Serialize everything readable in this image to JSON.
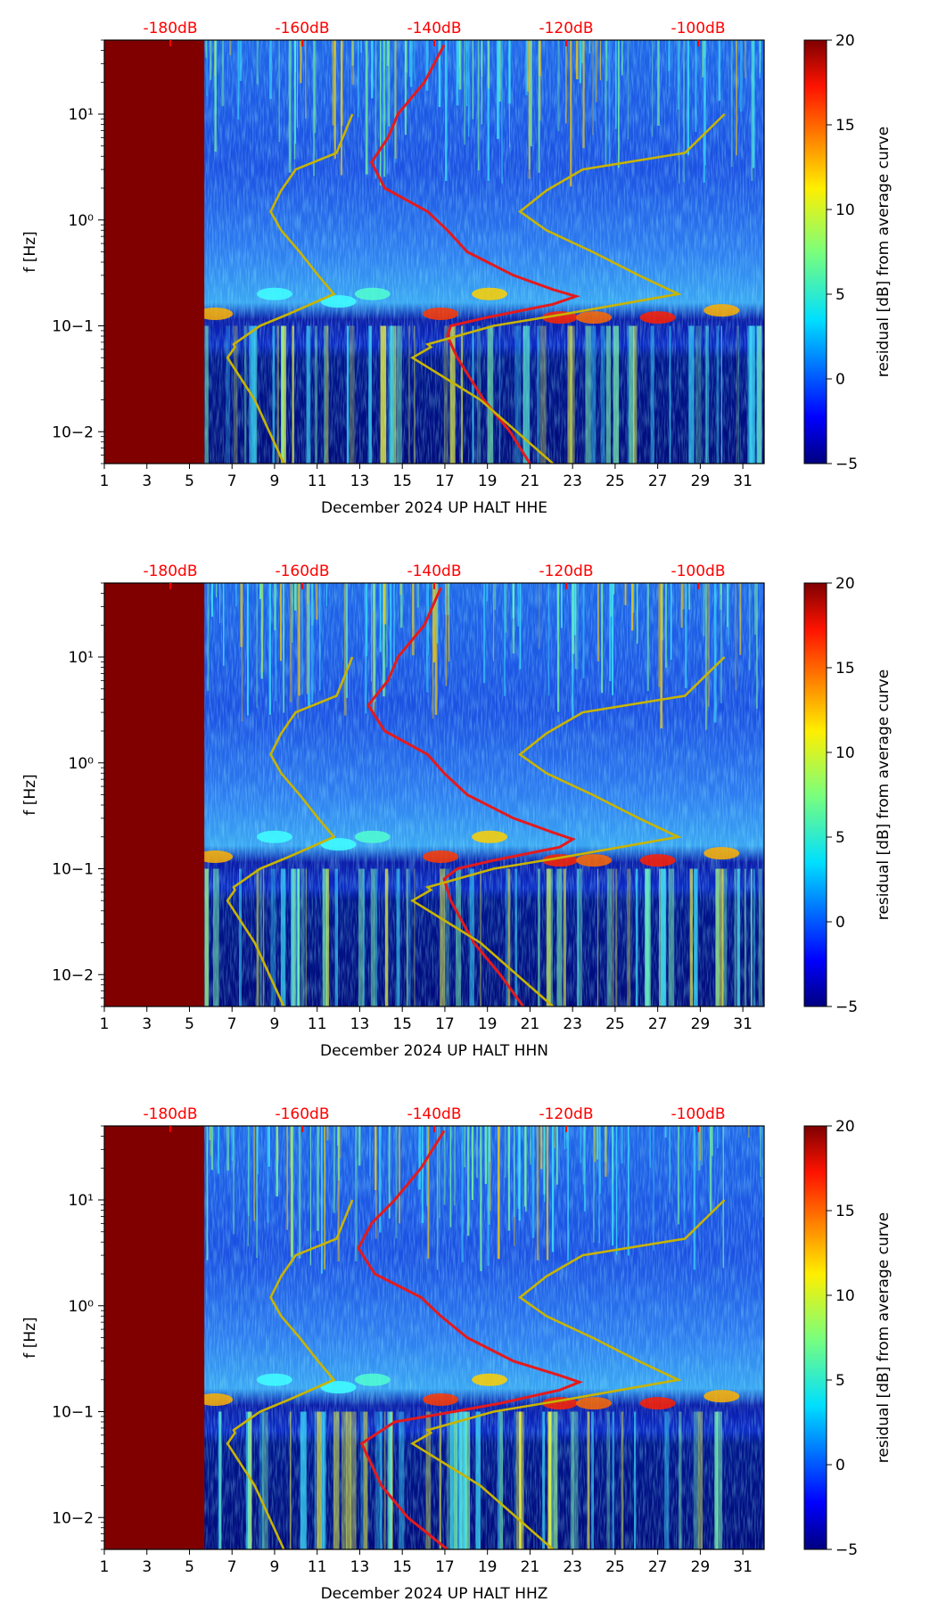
{
  "colors": {
    "top_axis_labels": "#ff0000",
    "red_curve": "#e41a1c",
    "gold_curve": "#c8b400",
    "masked_region": "#800000",
    "spectrogram_background": "#1a3cd9"
  },
  "chart_data": [
    {
      "type": "heatmap",
      "channel": "HHE",
      "xlabel": "December 2024 UP HALT  HHE",
      "ylabel": "f [Hz]",
      "x_ticks": [
        "1",
        "3",
        "5",
        "7",
        "9",
        "11",
        "13",
        "15",
        "17",
        "19",
        "21",
        "23",
        "25",
        "27",
        "29",
        "31"
      ],
      "x_range": [
        1,
        32
      ],
      "y_range_hz": [
        0.005,
        50
      ],
      "y_scale": "log",
      "y_ticks": [
        "10−2",
        "10−1",
        "10⁰",
        "10¹"
      ],
      "top_axis_labels": [
        "-180dB",
        "-160dB",
        "-140dB",
        "-120dB",
        "-100dB"
      ],
      "top_axis_db": [
        -180,
        -160,
        -140,
        -120,
        -100
      ],
      "colorbar_label": "residual [dB] from average curve",
      "colorbar_ticks": [
        "20",
        "15",
        "10",
        "5",
        "0",
        "−5"
      ],
      "colorbar_range": [
        -5,
        20
      ],
      "masked_days": [
        1,
        5.7
      ],
      "red_curve_db_vs_hz": [
        [
          0.005,
          -125.5
        ],
        [
          0.01,
          -128.5
        ],
        [
          0.02,
          -132.5
        ],
        [
          0.05,
          -136.5
        ],
        [
          0.08,
          -138
        ],
        [
          0.1,
          -137.5
        ],
        [
          0.12,
          -132
        ],
        [
          0.16,
          -122
        ],
        [
          0.19,
          -118.5
        ],
        [
          0.22,
          -122
        ],
        [
          0.3,
          -128
        ],
        [
          0.5,
          -135
        ],
        [
          0.8,
          -138
        ],
        [
          1.2,
          -141
        ],
        [
          2,
          -147.5
        ],
        [
          3.5,
          -149.5
        ],
        [
          6,
          -147
        ],
        [
          10,
          -145.5
        ],
        [
          20,
          -141.5
        ],
        [
          45,
          -138.5
        ]
      ],
      "gold_curve_db_vs_hz": [
        [
          0.005,
          -122
        ],
        [
          0.02,
          -133
        ],
        [
          0.05,
          -143.3
        ],
        [
          0.063,
          -140.5
        ],
        [
          0.067,
          -141
        ],
        [
          0.1,
          -131
        ],
        [
          0.13,
          -120
        ],
        [
          0.2,
          -103
        ],
        [
          0.3,
          -109
        ],
        [
          0.5,
          -116
        ],
        [
          0.8,
          -123
        ],
        [
          1.2,
          -127
        ],
        [
          1.9,
          -123
        ],
        [
          3,
          -117.5
        ],
        [
          4.3,
          -102
        ],
        [
          10,
          -96
        ]
      ]
    },
    {
      "type": "heatmap",
      "channel": "HHN",
      "xlabel": "December 2024 UP HALT  HHN",
      "ylabel": "f [Hz]",
      "x_ticks": [
        "1",
        "3",
        "5",
        "7",
        "9",
        "11",
        "13",
        "15",
        "17",
        "19",
        "21",
        "23",
        "25",
        "27",
        "29",
        "31"
      ],
      "x_range": [
        1,
        32
      ],
      "y_range_hz": [
        0.005,
        50
      ],
      "y_scale": "log",
      "y_ticks": [
        "10−2",
        "10−1",
        "10⁰",
        "10¹"
      ],
      "top_axis_labels": [
        "-180dB",
        "-160dB",
        "-140dB",
        "-120dB",
        "-100dB"
      ],
      "top_axis_db": [
        -180,
        -160,
        -140,
        -120,
        -100
      ],
      "colorbar_label": "residual [dB] from average curve",
      "colorbar_ticks": [
        "20",
        "15",
        "10",
        "5",
        "0",
        "−5"
      ],
      "colorbar_range": [
        -5,
        20
      ],
      "masked_days": [
        1,
        5.7
      ],
      "red_curve_db_vs_hz": [
        [
          0.005,
          -126.5
        ],
        [
          0.01,
          -130
        ],
        [
          0.02,
          -134
        ],
        [
          0.05,
          -137.5
        ],
        [
          0.08,
          -138.5
        ],
        [
          0.1,
          -136.5
        ],
        [
          0.12,
          -131
        ],
        [
          0.16,
          -121
        ],
        [
          0.19,
          -119
        ],
        [
          0.22,
          -122
        ],
        [
          0.3,
          -128
        ],
        [
          0.5,
          -135
        ],
        [
          0.8,
          -138.5
        ],
        [
          1.2,
          -141
        ],
        [
          2,
          -147.5
        ],
        [
          3.5,
          -150
        ],
        [
          6,
          -147
        ],
        [
          10,
          -145.5
        ],
        [
          20,
          -141.5
        ],
        [
          45,
          -139
        ]
      ],
      "gold_curve_db_vs_hz": [
        [
          0.005,
          -122
        ],
        [
          0.02,
          -133
        ],
        [
          0.05,
          -143.3
        ],
        [
          0.063,
          -140.5
        ],
        [
          0.067,
          -141
        ],
        [
          0.1,
          -131
        ],
        [
          0.13,
          -120
        ],
        [
          0.2,
          -103
        ],
        [
          0.3,
          -109
        ],
        [
          0.5,
          -116
        ],
        [
          0.8,
          -123
        ],
        [
          1.2,
          -127
        ],
        [
          1.9,
          -123
        ],
        [
          3,
          -117.5
        ],
        [
          4.3,
          -102
        ],
        [
          10,
          -96
        ]
      ]
    },
    {
      "type": "heatmap",
      "channel": "HHZ",
      "xlabel": "December 2024 UP HALT  HHZ",
      "ylabel": "f [Hz]",
      "x_ticks": [
        "1",
        "3",
        "5",
        "7",
        "9",
        "11",
        "13",
        "15",
        "17",
        "19",
        "21",
        "23",
        "25",
        "27",
        "29",
        "31"
      ],
      "x_range": [
        1,
        32
      ],
      "y_range_hz": [
        0.005,
        50
      ],
      "y_scale": "log",
      "y_ticks": [
        "10−2",
        "10−1",
        "10⁰",
        "10¹"
      ],
      "top_axis_labels": [
        "-180dB",
        "-160dB",
        "-140dB",
        "-120dB",
        "-100dB"
      ],
      "top_axis_db": [
        -180,
        -160,
        -140,
        -120,
        -100
      ],
      "colorbar_label": "residual [dB] from average curve",
      "colorbar_ticks": [
        "20",
        "15",
        "10",
        "5",
        "0",
        "−5"
      ],
      "colorbar_range": [
        -5,
        20
      ],
      "masked_days": [
        1,
        5.7
      ],
      "red_curve_db_vs_hz": [
        [
          0.005,
          -138
        ],
        [
          0.01,
          -144
        ],
        [
          0.02,
          -148
        ],
        [
          0.05,
          -151
        ],
        [
          0.08,
          -146
        ],
        [
          0.1,
          -137
        ],
        [
          0.12,
          -130
        ],
        [
          0.16,
          -121
        ],
        [
          0.19,
          -118
        ],
        [
          0.22,
          -121
        ],
        [
          0.3,
          -128
        ],
        [
          0.5,
          -135
        ],
        [
          0.8,
          -139
        ],
        [
          1.2,
          -142
        ],
        [
          2,
          -149
        ],
        [
          3.5,
          -151.5
        ],
        [
          6,
          -149.5
        ],
        [
          10,
          -146
        ],
        [
          20,
          -142
        ],
        [
          45,
          -138.5
        ]
      ],
      "gold_curve_db_vs_hz": [
        [
          0.005,
          -122
        ],
        [
          0.02,
          -133
        ],
        [
          0.05,
          -143.3
        ],
        [
          0.063,
          -140.5
        ],
        [
          0.067,
          -141
        ],
        [
          0.1,
          -131
        ],
        [
          0.13,
          -120
        ],
        [
          0.2,
          -103
        ],
        [
          0.3,
          -109
        ],
        [
          0.5,
          -116
        ],
        [
          0.8,
          -123
        ],
        [
          1.2,
          -127
        ],
        [
          1.9,
          -123
        ],
        [
          3,
          -117.5
        ],
        [
          4.3,
          -102
        ],
        [
          10,
          -96
        ]
      ]
    }
  ]
}
